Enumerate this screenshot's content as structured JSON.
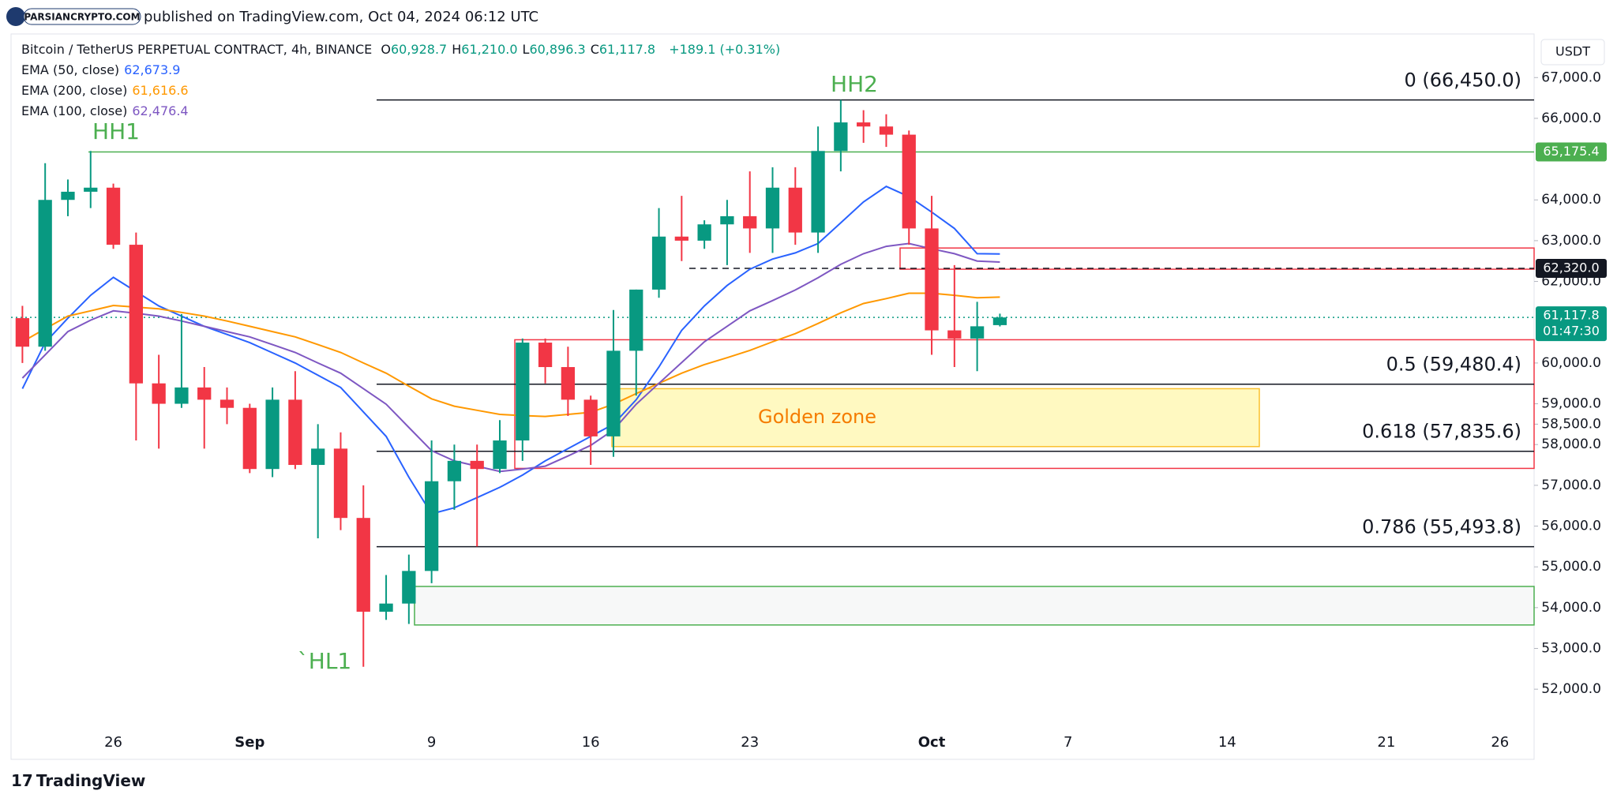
{
  "header": {
    "logo": "PARSIANCRYPTO.COM",
    "published": "published on TradingView.com, Oct 04, 2024 06:12 UTC",
    "footer": "TradingView",
    "unit": "USDT"
  },
  "legend": {
    "symbol": "Bitcoin / TetherUS PERPETUAL CONTRACT, 4h, BINANCE",
    "ohlc": [
      {
        "label": "O",
        "value": "60,928.7"
      },
      {
        "label": "H",
        "value": "61,210.0"
      },
      {
        "label": "L",
        "value": "60,896.3"
      },
      {
        "label": "C",
        "value": "61,117.8"
      }
    ],
    "change": "+189.1 (+0.31%)"
  },
  "chart_data": {
    "type": "candlestick",
    "up_color": "#089981",
    "down_color": "#f23645",
    "categories": [
      null,
      null,
      null,
      null,
      "26",
      null,
      null,
      null,
      null,
      null,
      "Sep",
      null,
      null,
      null,
      null,
      null,
      null,
      null,
      "9",
      null,
      null,
      null,
      null,
      null,
      null,
      "16",
      null,
      null,
      null,
      null,
      null,
      null,
      "23",
      null,
      null,
      null,
      null,
      null,
      null,
      null,
      "Oct",
      null,
      null,
      null,
      null,
      null,
      "7",
      null,
      null,
      null,
      null,
      null,
      null,
      "14",
      null,
      null,
      null,
      null,
      null,
      null,
      "21",
      null,
      null,
      null,
      null,
      "26",
      null
    ],
    "open": [
      61100,
      60400,
      64000,
      64200,
      64300,
      62900,
      59500,
      59000,
      59400,
      59100,
      58900,
      57400,
      59100,
      57500,
      57900,
      56200,
      53900,
      54100,
      54900,
      57100,
      57600,
      57400,
      58100,
      60500,
      59900,
      59100,
      58200,
      60300,
      61800,
      63100,
      63000,
      63400,
      63600,
      63300,
      64300,
      63200,
      65200,
      65900,
      65800,
      65600,
      63300,
      60800,
      60600,
      60928.7,
      null,
      null,
      null,
      null,
      null,
      null,
      null,
      null,
      null,
      null,
      null,
      null,
      null,
      null,
      null,
      null,
      null,
      null,
      null,
      null,
      null,
      null,
      null
    ],
    "high": [
      61400,
      64900,
      64500,
      65200,
      64400,
      63200,
      60200,
      61200,
      59900,
      59400,
      59000,
      59400,
      59800,
      58500,
      58300,
      57000,
      54800,
      55300,
      58100,
      58000,
      58000,
      58600,
      60600,
      60600,
      60400,
      59200,
      61300,
      61800,
      63800,
      64100,
      63500,
      64000,
      64700,
      64800,
      64800,
      65800,
      66450,
      66200,
      66100,
      65700,
      64100,
      62400,
      61500,
      61210,
      null,
      null,
      null,
      null,
      null,
      null,
      null,
      null,
      null,
      null,
      null,
      null,
      null,
      null,
      null,
      null,
      null,
      null,
      null,
      null,
      null,
      null,
      null
    ],
    "low": [
      60000,
      60300,
      63600,
      63800,
      62800,
      58100,
      57900,
      58900,
      57900,
      58500,
      57300,
      57200,
      57400,
      55700,
      55900,
      52550,
      53700,
      53600,
      54600,
      56400,
      55500,
      57300,
      57600,
      59500,
      58700,
      57500,
      57700,
      59200,
      61600,
      62500,
      62800,
      62400,
      62700,
      62700,
      62900,
      62700,
      64700,
      65400,
      65300,
      62900,
      60200,
      59900,
      59800,
      60896.3,
      null,
      null,
      null,
      null,
      null,
      null,
      null,
      null,
      null,
      null,
      null,
      null,
      null,
      null,
      null,
      null,
      null,
      null,
      null,
      null,
      null,
      null,
      null
    ],
    "close": [
      60400,
      64000,
      64200,
      64300,
      62900,
      59500,
      59000,
      59400,
      59100,
      58900,
      57400,
      59100,
      57500,
      57900,
      56200,
      53900,
      54100,
      54900,
      57100,
      57600,
      57400,
      58100,
      60500,
      59900,
      59100,
      58200,
      60300,
      61800,
      63100,
      63000,
      63400,
      63600,
      63300,
      64300,
      63200,
      65200,
      65900,
      65800,
      65600,
      63300,
      60800,
      60600,
      60900,
      61117.8,
      null,
      null,
      null,
      null,
      null,
      null,
      null,
      null,
      null,
      null,
      null,
      null,
      null,
      null,
      null,
      null,
      null,
      null,
      null,
      null,
      null,
      null,
      null
    ],
    "series": [
      {
        "name": "EMA (50, close)",
        "color": "#2962ff",
        "last_label": "62,673.9",
        "values": [
          59370,
          60500,
          61100,
          61660,
          62100,
          61750,
          61400,
          61150,
          60900,
          60700,
          60500,
          60250,
          60000,
          59700,
          59400,
          58800,
          58200,
          57200,
          56300,
          56450,
          56700,
          56950,
          57250,
          57600,
          57900,
          58200,
          58500,
          59100,
          59900,
          60800,
          61400,
          61900,
          62300,
          62550,
          62700,
          62930,
          63440,
          63950,
          64330,
          64080,
          63700,
          63300,
          62680,
          62674,
          null,
          null,
          null,
          null,
          null,
          null,
          null,
          null,
          null,
          null,
          null,
          null,
          null,
          null,
          null,
          null,
          null,
          null,
          null,
          null,
          null,
          null,
          null
        ]
      },
      {
        "name": "EMA (200, close)",
        "color": "#ff9800",
        "last_label": "61,616.6",
        "values": [
          60520,
          60840,
          61150,
          61280,
          61410,
          61370,
          61330,
          61240,
          61150,
          61030,
          60900,
          60770,
          60640,
          60450,
          60260,
          60000,
          59750,
          59430,
          59120,
          58940,
          58840,
          58740,
          58710,
          58690,
          58740,
          58790,
          58990,
          59250,
          59500,
          59750,
          59960,
          60130,
          60310,
          60520,
          60720,
          60970,
          61230,
          61460,
          61580,
          61710,
          61710,
          61660,
          61600,
          61617,
          null,
          null,
          null,
          null,
          null,
          null,
          null,
          null,
          null,
          null,
          null,
          null,
          null,
          null,
          null,
          null,
          null,
          null,
          null,
          null,
          null,
          null,
          null
        ]
      },
      {
        "name": "EMA (100, close)",
        "color": "#7e57c2",
        "last_label": "62,476.4",
        "values": [
          59630,
          60200,
          60770,
          61050,
          61280,
          61220,
          61150,
          61030,
          60900,
          60770,
          60640,
          60450,
          60260,
          60000,
          59750,
          59370,
          58990,
          58420,
          57850,
          57600,
          57470,
          57340,
          57400,
          57470,
          57720,
          57980,
          58360,
          58990,
          59500,
          60010,
          60520,
          60900,
          61280,
          61530,
          61790,
          62090,
          62420,
          62680,
          62860,
          62930,
          62800,
          62680,
          62500,
          62476,
          null,
          null,
          null,
          null,
          null,
          null,
          null,
          null,
          null,
          null,
          null,
          null,
          null,
          null,
          null,
          null,
          null,
          null,
          null,
          null,
          null,
          null,
          null
        ]
      }
    ],
    "ylim": [
      50280,
      68070
    ],
    "yticks": [
      {
        "value": 52000,
        "label": "52,000.0"
      },
      {
        "value": 53000,
        "label": "53,000.0"
      },
      {
        "value": 54000,
        "label": "54,000.0"
      },
      {
        "value": 55000,
        "label": "55,000.0"
      },
      {
        "value": 56000,
        "label": "56,000.0"
      },
      {
        "value": 57000,
        "label": "57,000.0"
      },
      {
        "value": 58000,
        "label": "58,000.0"
      },
      {
        "value": 58500,
        "label": "58,500.0"
      },
      {
        "value": 59000,
        "label": "59,000.0"
      },
      {
        "value": 60000,
        "label": "60,000.0"
      },
      {
        "value": 62000,
        "label": "62,000.0"
      },
      {
        "value": 63000,
        "label": "63,000.0"
      },
      {
        "value": 64000,
        "label": "64,000.0"
      },
      {
        "value": 66000,
        "label": "66,000.0"
      },
      {
        "value": 67000,
        "label": "67,000.0"
      }
    ],
    "fib_levels": [
      {
        "value": 66450,
        "label": "0 (66,450.0)"
      },
      {
        "value": 59480.4,
        "label": "0.5 (59,480.4)"
      },
      {
        "value": 57835.6,
        "label": "0.618 (57,835.6)"
      },
      {
        "value": 55493.8,
        "label": "0.786 (55,493.8)"
      }
    ],
    "zones": [
      {
        "top": 62820,
        "bottom": 62300,
        "color": "#f23645"
      },
      {
        "top": 60570,
        "bottom": 57415,
        "color": "#f23645"
      },
      {
        "top": 59370,
        "bottom": 57950,
        "color": "#fbc02d",
        "label": "Golden zone"
      },
      {
        "top": 54520,
        "bottom": 53575,
        "color": "#4caf50"
      }
    ],
    "lines": [
      {
        "value": 65175.4,
        "label": "65,175.4",
        "color": "#4caf50"
      },
      {
        "value": 62320,
        "label": "62,320.0",
        "color": "#131722"
      },
      {
        "value": 61117.8,
        "label": "61,117.8",
        "countdown": "01:47:30",
        "color": "#089981"
      }
    ],
    "annotations": [
      {
        "text": "HH1"
      },
      {
        "text": "HH2"
      },
      {
        "text": "`HL1"
      }
    ]
  }
}
